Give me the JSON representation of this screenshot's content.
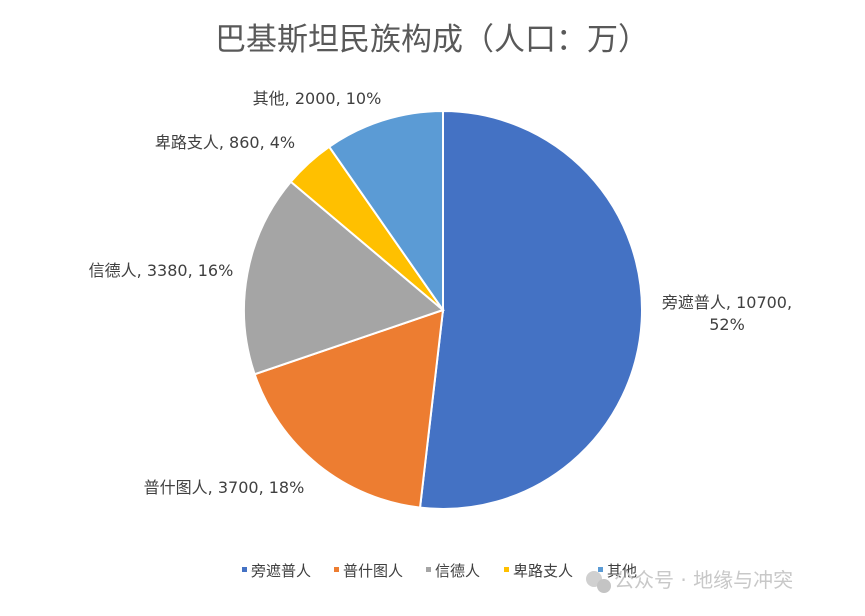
{
  "chart_data": {
    "type": "pie",
    "title": "巴基斯坦民族构成（人口：万）",
    "categories": [
      "旁遮普人",
      "普什图人",
      "信德人",
      "卑路支人",
      "其他"
    ],
    "values": [
      10700,
      3700,
      3380,
      860,
      2000
    ],
    "percent_labels": [
      "52%",
      "18%",
      "16%",
      "4%",
      "10%"
    ],
    "data_labels": [
      [
        "旁遮普人, 10700,",
        "52%"
      ],
      [
        "普什图人, 3700, 18%"
      ],
      [
        "信德人, 3380, 16%"
      ],
      [
        "卑路支人, 860, 4%"
      ],
      [
        "其他, 2000, 10%"
      ]
    ],
    "colors": [
      "#4472C4",
      "#ED7D31",
      "#A5A5A5",
      "#FFC000",
      "#5B9BD5"
    ],
    "legend": {
      "placement": "bottom",
      "entries": [
        "旁遮普人",
        "普什图人",
        "信德人",
        "卑路支人",
        "其他"
      ]
    }
  },
  "watermark": {
    "text": "公众号 · 地缘与冲突",
    "icon": "wechat-icon"
  }
}
